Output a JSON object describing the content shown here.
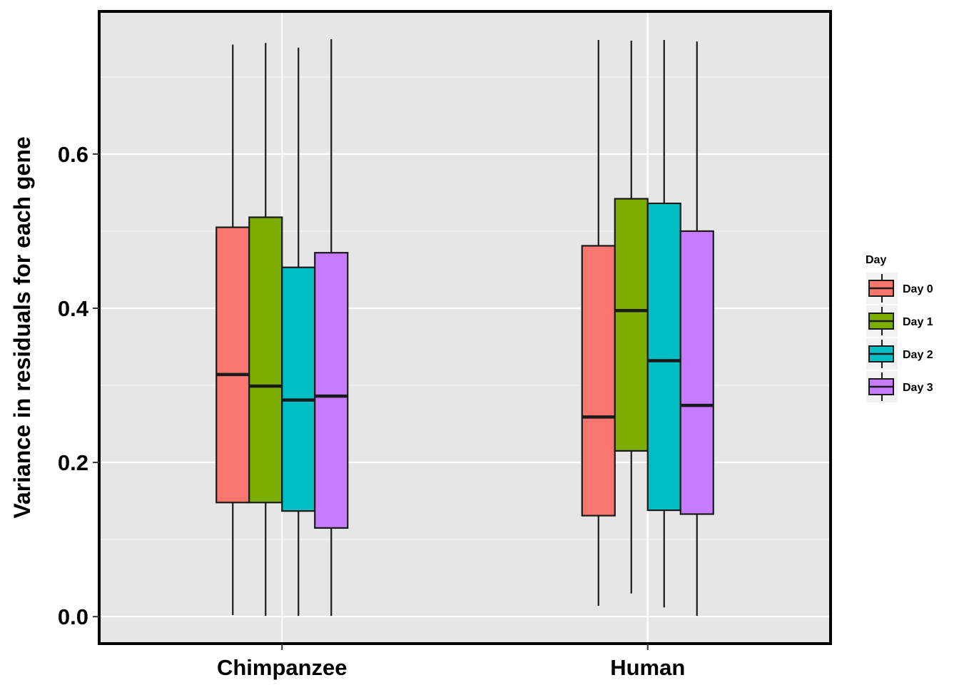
{
  "chart_data": {
    "type": "boxplot",
    "title": "",
    "xlabel": "",
    "ylabel": "Variance in residuals for each gene",
    "ylim": [
      -0.035,
      0.785
    ],
    "y_ticks": [
      0.0,
      0.2,
      0.4,
      0.6
    ],
    "y_tick_labels": [
      "0.0",
      "0.2",
      "0.4",
      "0.6"
    ],
    "categories": [
      "Chimpanzee",
      "Human"
    ],
    "grid": true,
    "legend": {
      "title": "Day",
      "position": "right"
    },
    "series": [
      {
        "name": "Day 0",
        "color": "#F8766D",
        "boxes": [
          {
            "category": "Chimpanzee",
            "min": 0.002,
            "q1": 0.148,
            "median": 0.314,
            "q3": 0.505,
            "max": 0.742
          },
          {
            "category": "Human",
            "min": 0.014,
            "q1": 0.131,
            "median": 0.259,
            "q3": 0.481,
            "max": 0.748
          }
        ]
      },
      {
        "name": "Day 1",
        "color": "#7CAE00",
        "boxes": [
          {
            "category": "Chimpanzee",
            "min": 0.001,
            "q1": 0.148,
            "median": 0.299,
            "q3": 0.518,
            "max": 0.744
          },
          {
            "category": "Human",
            "min": 0.03,
            "q1": 0.215,
            "median": 0.397,
            "q3": 0.542,
            "max": 0.747
          }
        ]
      },
      {
        "name": "Day 2",
        "color": "#00BFC4",
        "boxes": [
          {
            "category": "Chimpanzee",
            "min": 0.001,
            "q1": 0.137,
            "median": 0.281,
            "q3": 0.453,
            "max": 0.738
          },
          {
            "category": "Human",
            "min": 0.012,
            "q1": 0.138,
            "median": 0.332,
            "q3": 0.536,
            "max": 0.748
          }
        ]
      },
      {
        "name": "Day 3",
        "color": "#C77CFF",
        "boxes": [
          {
            "category": "Chimpanzee",
            "min": 0.001,
            "q1": 0.115,
            "median": 0.286,
            "q3": 0.472,
            "max": 0.749
          },
          {
            "category": "Human",
            "min": 0.001,
            "q1": 0.133,
            "median": 0.274,
            "q3": 0.5,
            "max": 0.746
          }
        ]
      }
    ]
  }
}
